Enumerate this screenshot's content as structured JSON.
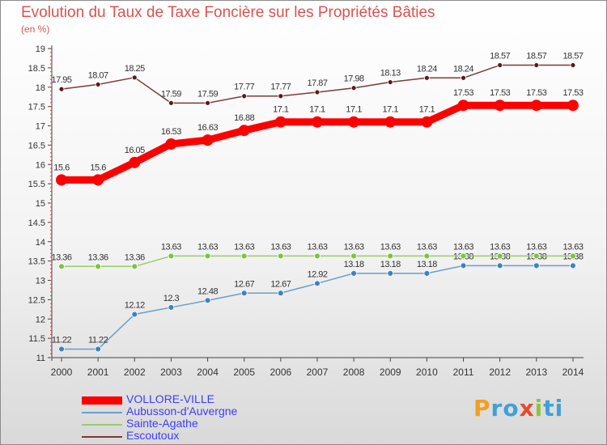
{
  "title": "Evolution du Taux de Taxe Foncière sur les Propriétés Bâties",
  "unit_label": "(en %)",
  "brand": "Proxiti",
  "chart_data": {
    "type": "line",
    "title": "Evolution du Taux de Taxe Foncière sur les Propriétés Bâties",
    "ylabel": "(en %)",
    "xlabel": "",
    "x": [
      2000,
      2001,
      2002,
      2003,
      2004,
      2005,
      2006,
      2007,
      2008,
      2009,
      2010,
      2011,
      2012,
      2013,
      2014
    ],
    "ylim": [
      11,
      19
    ],
    "yticks": [
      "11",
      "11.5",
      "12",
      "12.5",
      "13",
      "13.5",
      "14",
      "14.5",
      "15",
      "15.5",
      "16",
      "16.5",
      "17",
      "17.5",
      "18",
      "18.5",
      "19"
    ],
    "grid": false,
    "legend_position": "bottom-left",
    "series": [
      {
        "name": "VOLLORE-VILLE",
        "color": "#ff0000",
        "dot_color": "#ff0000",
        "values": [
          15.6,
          15.6,
          16.05,
          16.53,
          16.63,
          16.88,
          17.1,
          17.1,
          17.1,
          17.1,
          17.1,
          17.53,
          17.53,
          17.53,
          17.53
        ]
      },
      {
        "name": "Aubusson-d'Auvergne",
        "color": "#6a9fc9",
        "dot_color": "#3e82c4",
        "values": [
          11.22,
          11.22,
          12.12,
          12.3,
          12.48,
          12.67,
          12.67,
          12.92,
          13.18,
          13.18,
          13.18,
          13.38,
          13.38,
          13.38,
          13.38
        ]
      },
      {
        "name": "Sainte-Agathe",
        "color": "#99cc66",
        "dot_color": "#7fc242",
        "values": [
          13.36,
          13.36,
          13.36,
          13.63,
          13.63,
          13.63,
          13.63,
          13.63,
          13.63,
          13.63,
          13.63,
          13.63,
          13.63,
          13.63,
          13.63
        ]
      },
      {
        "name": "Escoutoux",
        "color": "#7a3b3b",
        "dot_color": "#5a1a1a",
        "values": [
          17.95,
          18.07,
          18.25,
          17.59,
          17.59,
          17.77,
          17.77,
          17.87,
          17.98,
          18.13,
          18.24,
          18.24,
          18.57,
          18.57,
          18.57
        ]
      }
    ]
  }
}
